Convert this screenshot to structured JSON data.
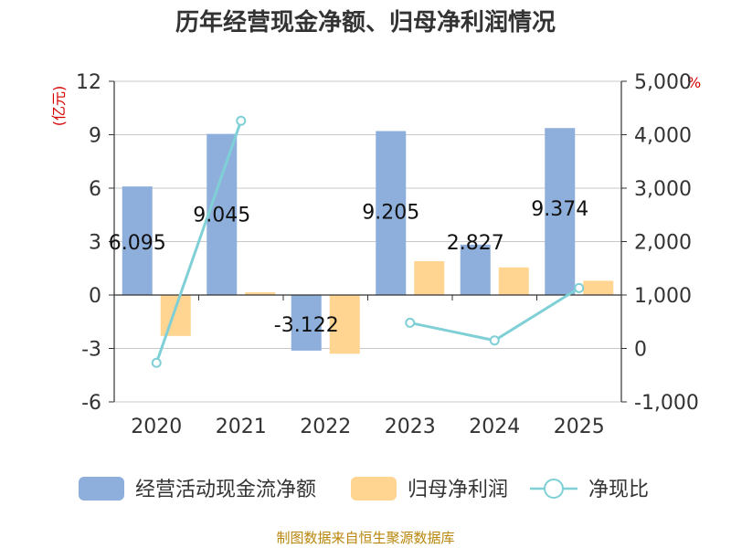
{
  "chart_data": {
    "type": "bar",
    "title": "历年经营现金净额、归母净利润情况",
    "left_unit": "(亿元)",
    "right_unit": "%",
    "categories": [
      "2020",
      "2021",
      "2022",
      "2023",
      "2024",
      "2025"
    ],
    "left_axis": {
      "min": -6,
      "max": 12,
      "ticks": [
        "12",
        "9",
        "6",
        "3",
        "0",
        "-3",
        "-6"
      ]
    },
    "right_axis": {
      "min": -1000,
      "max": 5000,
      "ticks": [
        "5,000",
        "4,000",
        "3,000",
        "2,000",
        "1,000",
        "0",
        "-1,000"
      ]
    },
    "grid": true,
    "legend_position": "bottom",
    "series": [
      {
        "name": "经营活动现金流净额",
        "type": "bar",
        "axis": "left",
        "color": "#8eaedb",
        "values": [
          6.095,
          9.045,
          -3.122,
          9.205,
          2.827,
          9.374
        ],
        "labels": [
          "6.095",
          "9.045",
          "-3.122",
          "9.205",
          "2.827",
          "9.374"
        ]
      },
      {
        "name": "归母净利润",
        "type": "bar",
        "axis": "left",
        "color": "#ffd591",
        "values": [
          -2.3,
          0.15,
          -3.3,
          1.9,
          1.55,
          0.8
        ]
      },
      {
        "name": "净现比",
        "type": "line",
        "axis": "right",
        "color": "#7fd0d6",
        "values": [
          -270,
          4260,
          null,
          480,
          150,
          1130
        ]
      }
    ],
    "source": "制图数据来自恒生聚源数据库"
  }
}
